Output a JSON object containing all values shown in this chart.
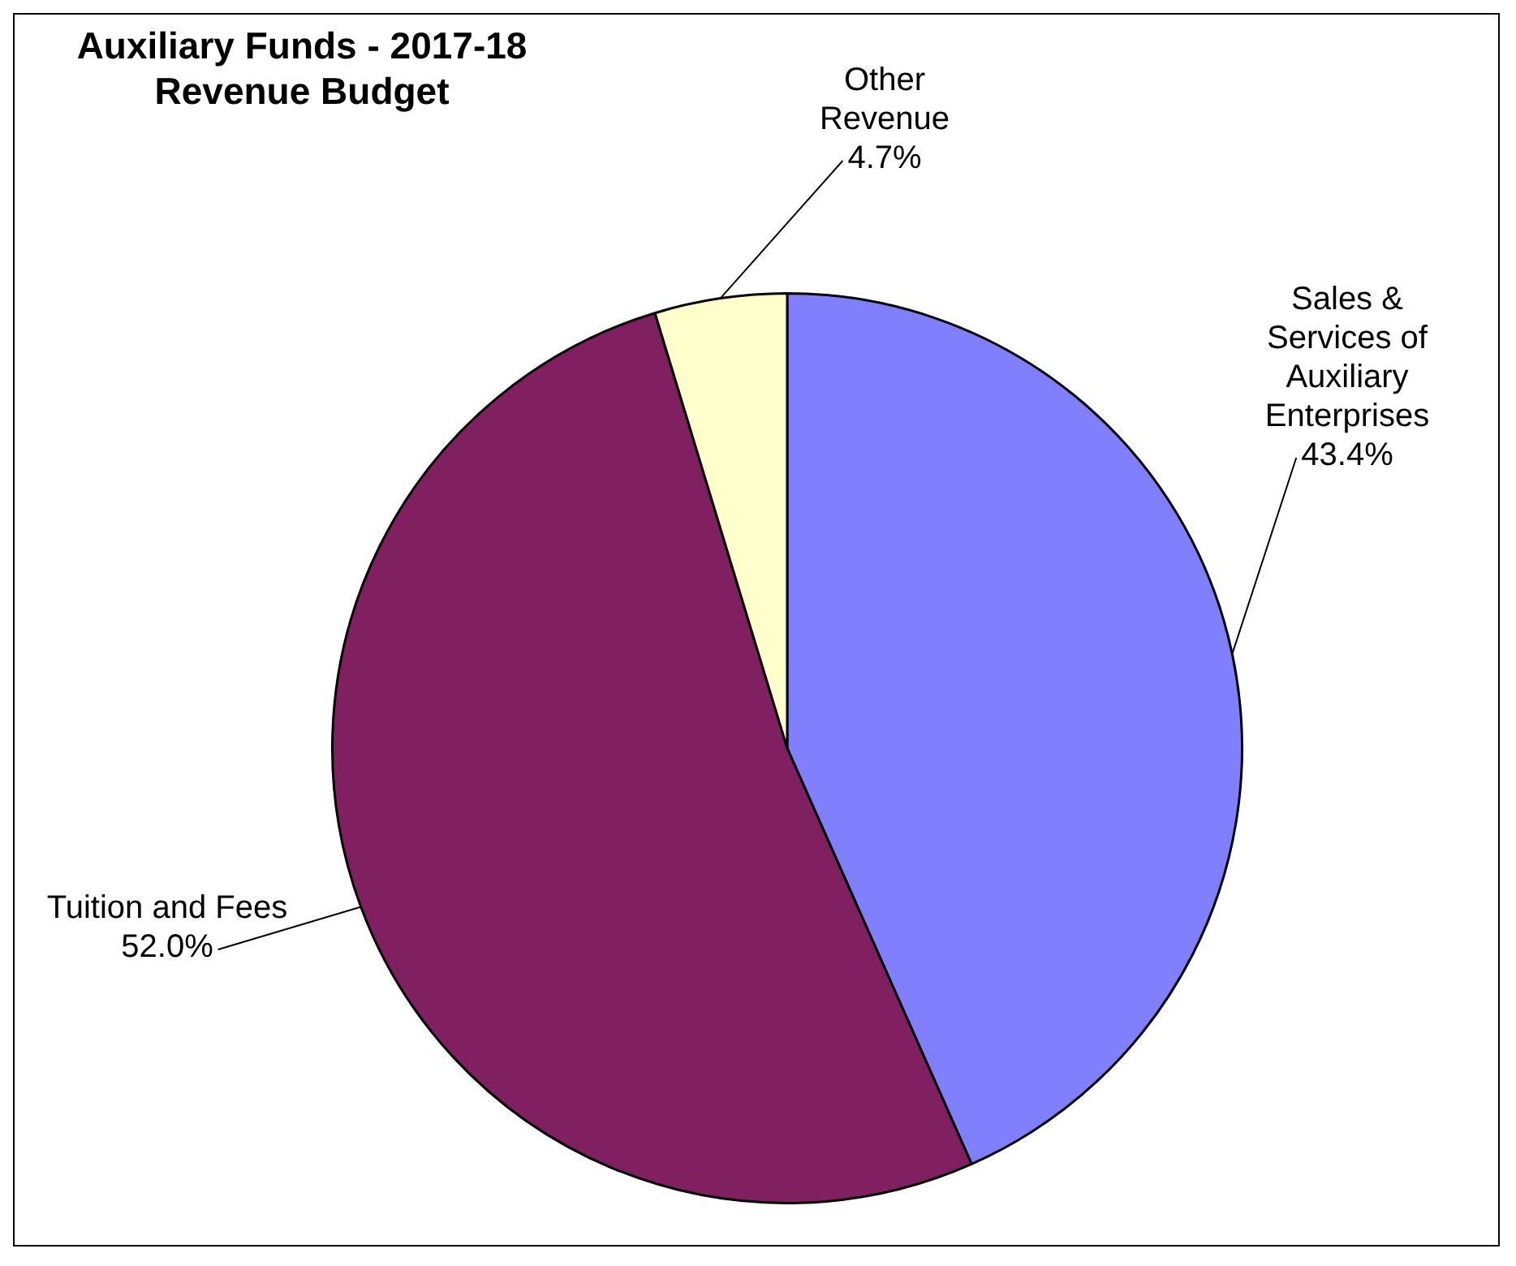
{
  "chart_data": {
    "type": "pie",
    "title": "Auxiliary Funds - 2017-18 Revenue Budget",
    "categories": [
      "Sales & Services of Auxiliary Enterprises",
      "Tuition and Fees",
      "Other Revenue"
    ],
    "values": [
      43.4,
      52.0,
      4.7
    ],
    "colors": [
      "#8080ff",
      "#802060",
      "#ffffcc"
    ],
    "value_labels": [
      "43.4%",
      "52.0%",
      "4.7%"
    ],
    "legend": false
  }
}
